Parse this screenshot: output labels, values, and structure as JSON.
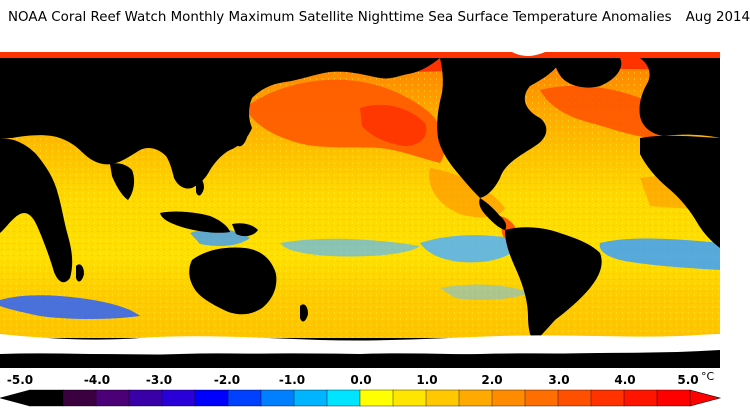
{
  "header": {
    "title": "NOAA Coral Reef Watch Monthly Maximum Satellite Nighttime Sea Surface Temperature Anomalies",
    "date": "Aug 2014"
  },
  "legend": {
    "ticks": [
      "-5.0",
      "-4.0",
      "-3.0",
      "-2.0",
      "-1.0",
      "0.0",
      "1.0",
      "2.0",
      "3.0",
      "4.0",
      "5.0"
    ],
    "unit": "°C",
    "range": [
      -5.0,
      5.0
    ],
    "colors": [
      "#000000",
      "#3a0040",
      "#4c0077",
      "#3a00a8",
      "#2a00d8",
      "#0000ff",
      "#0040ff",
      "#007fff",
      "#00b4ff",
      "#00e4ff",
      "#ffff00",
      "#ffe600",
      "#ffc800",
      "#ffaa00",
      "#ff8c00",
      "#ff6e00",
      "#ff5000",
      "#ff3200",
      "#ff1400",
      "#ff0000"
    ]
  },
  "map_colors": {
    "land": "#000000",
    "ice": "#ffffff",
    "cool_anomaly": "#3aa0ff",
    "strong_cool": "#1e3cff",
    "neutral": "#ffff00",
    "warm": "#ffc000",
    "hot": "#ff5a00",
    "very_hot": "#ff2000"
  }
}
